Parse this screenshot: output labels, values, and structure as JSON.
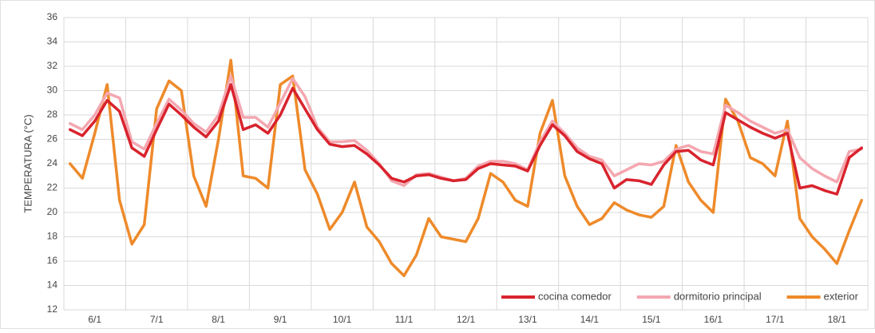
{
  "chart_data": {
    "type": "line",
    "ylabel": "TEMPERATURA (°C)",
    "categories": [
      null,
      null,
      "6/1",
      null,
      null,
      null,
      null,
      "7/1",
      null,
      null,
      null,
      null,
      "8/1",
      null,
      null,
      null,
      null,
      "9/1",
      null,
      null,
      null,
      null,
      "10/1",
      null,
      null,
      null,
      null,
      "11/1",
      null,
      null,
      null,
      null,
      "12/1",
      null,
      null,
      null,
      null,
      "13/1",
      null,
      null,
      null,
      null,
      "14/1",
      null,
      null,
      null,
      null,
      "15/1",
      null,
      null,
      null,
      null,
      "16/1",
      null,
      null,
      null,
      null,
      "17/1",
      null,
      null,
      null,
      null,
      "18/1",
      null,
      null
    ],
    "series": [
      {
        "name": "cocina comedor",
        "color": "#d9232d",
        "values": [
          26.8,
          26.3,
          27.5,
          29.2,
          28.3,
          25.3,
          24.6,
          26.8,
          28.9,
          28,
          27,
          26.2,
          27.5,
          30.5,
          26.8,
          27.2,
          26.5,
          28,
          30.2,
          28.5,
          26.8,
          25.6,
          25.4,
          25.5,
          24.8,
          23.9,
          22.8,
          22.5,
          23,
          23.1,
          22.8,
          22.6,
          22.7,
          23.6,
          24,
          23.9,
          23.8,
          23.4,
          25.5,
          27.2,
          26.3,
          25,
          24.4,
          24,
          22,
          22.7,
          22.6,
          22.3,
          23.9,
          25,
          25.1,
          24.3,
          23.9,
          28.2,
          27.6,
          27,
          26.5,
          26.1,
          26.5,
          22,
          22.2,
          21.8,
          21.5,
          24.5,
          25.3
        ]
      },
      {
        "name": "dormitorio principal",
        "color": "#f4a7b0",
        "values": [
          27.3,
          26.8,
          28,
          29.8,
          29.4,
          25.8,
          25.2,
          27.3,
          29.3,
          28.4,
          27.3,
          26.6,
          28,
          31.2,
          27.8,
          27.8,
          27,
          29,
          31,
          29.5,
          27,
          25.8,
          25.8,
          25.9,
          25.1,
          24,
          22.6,
          22.2,
          23.1,
          23.2,
          22.9,
          22.6,
          22.8,
          23.8,
          24.2,
          24.2,
          24,
          23.5,
          25.8,
          27.5,
          26.5,
          25.3,
          24.6,
          24.3,
          23,
          23.5,
          24,
          23.9,
          24.2,
          25.2,
          25.5,
          25,
          24.8,
          28.8,
          28.2,
          27.5,
          27,
          26.5,
          26.8,
          24.5,
          23.6,
          23,
          22.5,
          25,
          25.2
        ]
      },
      {
        "name": "exterior",
        "color": "#ee8a2a",
        "values": [
          24,
          22.8,
          26.5,
          30.5,
          21,
          17.4,
          19,
          28.5,
          30.8,
          30,
          23,
          20.5,
          26,
          32.5,
          23,
          22.8,
          22,
          30.5,
          31.2,
          23.5,
          21.5,
          18.6,
          20,
          22.5,
          18.8,
          17.6,
          15.8,
          14.8,
          16.5,
          19.5,
          18,
          17.8,
          17.6,
          19.5,
          23.2,
          22.5,
          21,
          20.5,
          26.5,
          29.2,
          23,
          20.5,
          19,
          19.5,
          20.8,
          20.2,
          19.8,
          19.6,
          20.5,
          25.5,
          22.5,
          21,
          20,
          29.3,
          27.5,
          24.5,
          24,
          23,
          27.5,
          19.5,
          18,
          17,
          15.8,
          18.5,
          21
        ]
      }
    ],
    "ylim": [
      12,
      36
    ],
    "yticks": [
      12,
      14,
      16,
      18,
      20,
      22,
      24,
      26,
      28,
      30,
      32,
      34,
      36
    ],
    "grid": true,
    "legend": "lower right"
  }
}
